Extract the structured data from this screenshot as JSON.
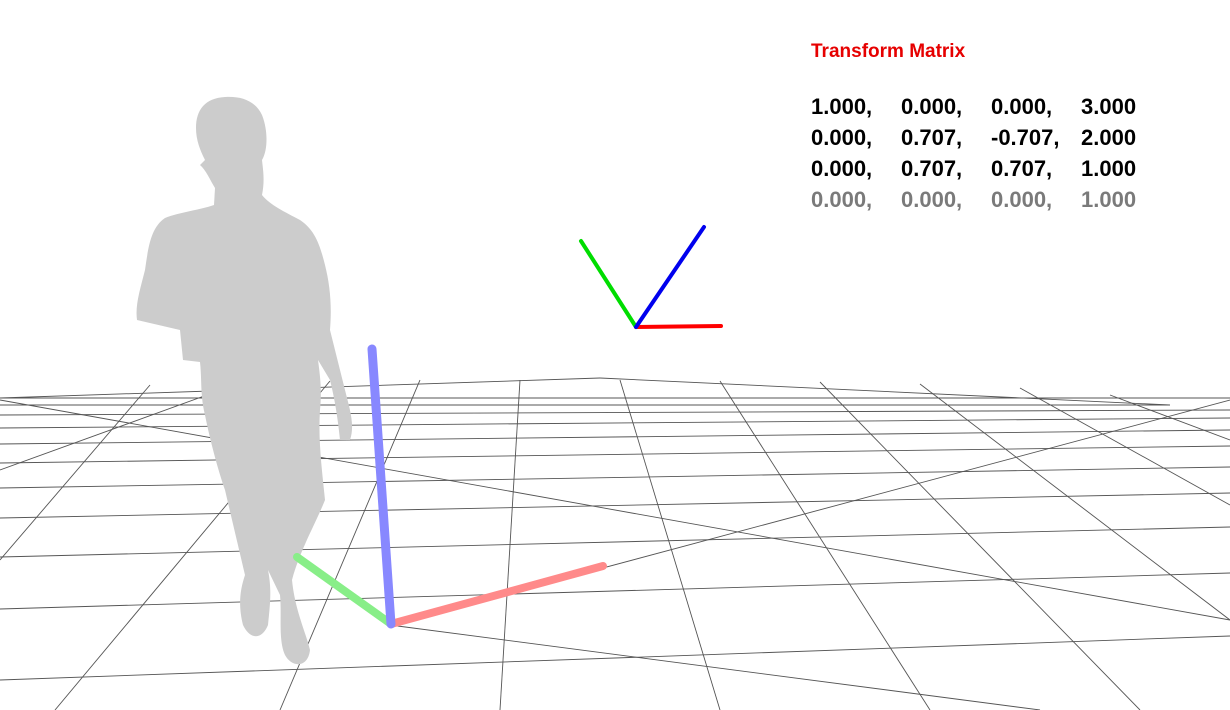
{
  "title": "Transform Matrix",
  "colors": {
    "title": "#e60000",
    "row_text": "#000000",
    "last_row_text": "#7a7a7a",
    "x_axis_world": "#ff8a8a",
    "y_axis_world": "#88ee88",
    "z_axis_world": "#8888ff",
    "x_axis_frame": "#ff0000",
    "y_axis_frame": "#00dd00",
    "z_axis_frame": "#0000ee",
    "grid": "#555555",
    "silhouette": "#cccccc"
  },
  "matrix": [
    [
      "1.000,",
      "0.000,",
      "0.000,",
      "3.000"
    ],
    [
      "0.000,",
      "0.707,",
      "-0.707,",
      "2.000"
    ],
    [
      "0.000,",
      "0.707,",
      "0.707,",
      "1.000"
    ],
    [
      "0.000,",
      "0.000,",
      "0.000,",
      "1.000"
    ]
  ],
  "icons": {
    "person": "person-silhouette-icon"
  }
}
